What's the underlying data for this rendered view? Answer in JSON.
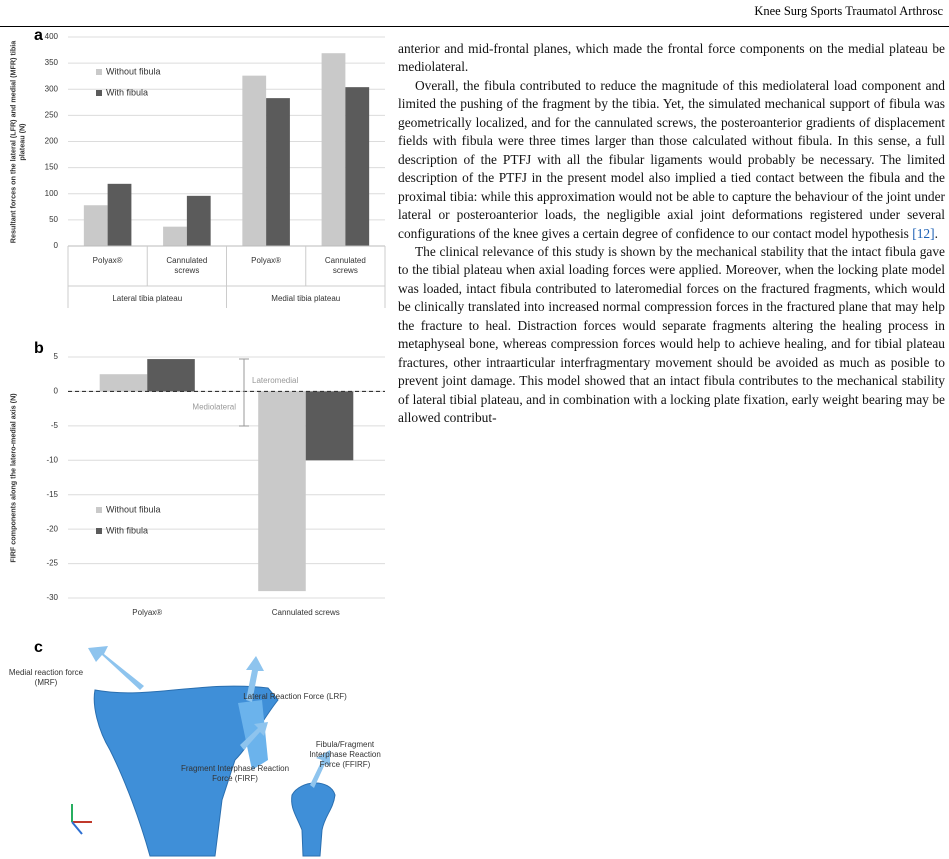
{
  "header": {
    "journal": "Knee Surg Sports Traumatol Arthrosc"
  },
  "chart_data": [
    {
      "type": "bar",
      "panel": "a",
      "ylabel": "Resultant forces on the lateral (LFR) and medial (MFR) tibia plateau (N)",
      "categories": [
        "Polyax®",
        "Cannulated screws",
        "Polyax®",
        "Cannulated screws"
      ],
      "group_labels": [
        "Lateral tibia plateau",
        "Medial tibia plateau"
      ],
      "series": [
        {
          "name": "Without fibula",
          "color": "#c9c9c9",
          "values": [
            78,
            37,
            326,
            369
          ]
        },
        {
          "name": "With fibula",
          "color": "#5b5b5b",
          "values": [
            119,
            96,
            283,
            304
          ]
        }
      ],
      "ylim": [
        0,
        400
      ],
      "yticks": [
        0,
        50,
        100,
        150,
        200,
        250,
        300,
        350,
        400
      ],
      "grid": true
    },
    {
      "type": "bar",
      "panel": "b",
      "ylabel": "FIRF components along the latero-medial axis (N)",
      "categories": [
        "Polyax®",
        "Cannulated screws"
      ],
      "series": [
        {
          "name": "Without fibula",
          "color": "#c9c9c9",
          "values": [
            2.5,
            -29
          ]
        },
        {
          "name": "With fibula",
          "color": "#5b5b5b",
          "values": [
            4.7,
            -10
          ]
        }
      ],
      "annotations": [
        "Lateromedial",
        "Mediolateral"
      ],
      "ylim": [
        -30,
        5
      ],
      "yticks": [
        5,
        0,
        -5,
        -10,
        -15,
        -20,
        -25,
        -30
      ],
      "grid": true
    }
  ],
  "figure_c": {
    "panel": "c",
    "labels": [
      "Medial reaction force (MRF)",
      "Lateral Reaction Force (LRF)",
      "Fibula/Fragment Interphase Reaction Force (FFIRF)",
      "Fragment Interphase Reaction Force (FIRF)"
    ]
  },
  "body": {
    "p1": "anterior and mid-frontal planes, which made the frontal force components on the medial plateau be mediolateral.",
    "p2": {
      "text": "Overall, the fibula contributed to reduce the magnitude of this mediolateral load component and limited the pushing of the fragment by the tibia. Yet, the simulated mechanical support of fibula was geometrically localized, and for the cannulated screws, the posteroanterior gradients of displacement fields with fibula were three times larger than those calculated without fibula. In this sense, a full description of the PTFJ with all the fibular ligaments would probably be necessary. The limited description of the PTFJ in the present model also implied a tied contact between the fibula and the proximal tibia: while this approximation would not be able to capture the behaviour of the joint under lateral or posteroanterior loads, the negligible axial joint deformations registered under several configurations of the knee gives a certain degree of confidence to our contact model hypothesis ",
      "citation": "[12]",
      "end": "."
    },
    "p3": "The clinical relevance of this study is shown by the mechanical stability that the intact fibula gave to the tibial plateau when axial loading forces were applied. Moreover, when the locking plate model was loaded, intact fibula contributed to lateromedial forces on the fractured fragments, which would be clinically translated into increased normal compression forces in the fractured plane that may help the fracture to heal. Distraction forces would separate fragments altering the healing process in metaphyseal bone, whereas compression forces would help to achieve healing, and for tibial plateau fractures, other intraarticular interfragmentary movement should be avoided as much as posible to prevent joint damage. This model showed that an intact fibula contributes to the mechanical stability of lateral tibial plateau, and in combination with a locking plate fixation, early weight bearing may be allowed contribut-"
  }
}
